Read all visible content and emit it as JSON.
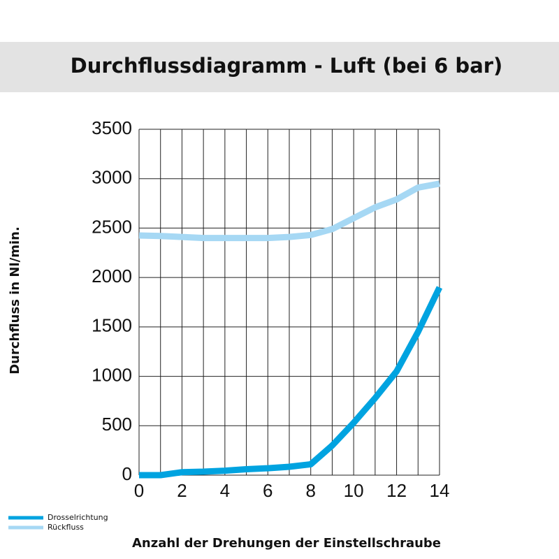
{
  "chart_data": {
    "type": "line",
    "title": "Durchflussdiagramm - Luft (bei 6 bar)",
    "x_label": "Anzahl der Drehungen der Einstellschraube",
    "y_label": "Durchfluss in Nl/min.",
    "x": [
      0,
      1,
      2,
      3,
      4,
      5,
      6,
      7,
      8,
      9,
      10,
      11,
      12,
      13,
      14
    ],
    "series": [
      {
        "name": "Drosselrichtung",
        "color": "#00a3e0",
        "values": [
          0,
          0,
          30,
          35,
          45,
          60,
          70,
          85,
          110,
          300,
          530,
          780,
          1050,
          1450,
          1900
        ]
      },
      {
        "name": "Rückfluss",
        "color": "#a6d8f4",
        "values": [
          2425,
          2420,
          2410,
          2400,
          2400,
          2400,
          2400,
          2410,
          2430,
          2490,
          2600,
          2710,
          2790,
          2910,
          2950
        ]
      }
    ],
    "xlim": [
      0,
      14
    ],
    "xticks": [
      0,
      2,
      4,
      6,
      8,
      10,
      12,
      14
    ],
    "xgrid": [
      0,
      1,
      2,
      3,
      4,
      5,
      6,
      7,
      8,
      9,
      10,
      11,
      12,
      13,
      14
    ],
    "ylim": [
      0,
      3500
    ],
    "yticks": [
      0,
      500,
      1000,
      1500,
      2000,
      2500,
      3000,
      3500
    ],
    "grid": true,
    "legend": "bottom-left"
  }
}
